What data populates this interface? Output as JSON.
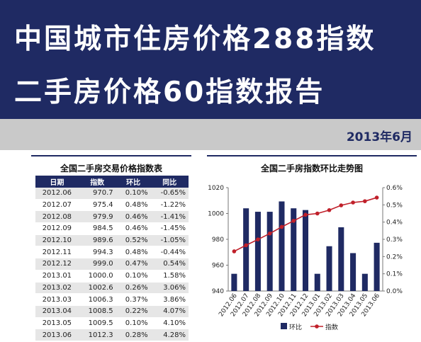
{
  "header": {
    "line1": "中国城市住房价格288指数",
    "line2": "二手房价格60指数报告",
    "date": "2013年6月"
  },
  "table": {
    "title": "全国二手房交易价格指数表",
    "columns": [
      "日期",
      "指数",
      "环比",
      "同比"
    ],
    "rows": [
      [
        "2012.06",
        "970.7",
        "0.10%",
        "-0.65%"
      ],
      [
        "2012.07",
        "975.4",
        "0.48%",
        "-1.22%"
      ],
      [
        "2012.08",
        "979.9",
        "0.46%",
        "-1.41%"
      ],
      [
        "2012.09",
        "984.5",
        "0.46%",
        "-1.45%"
      ],
      [
        "2012.10",
        "989.6",
        "0.52%",
        "-1.05%"
      ],
      [
        "2012.11",
        "994.3",
        "0.48%",
        "-0.44%"
      ],
      [
        "2012.12",
        "999.0",
        "0.47%",
        "0.54%"
      ],
      [
        "2013.01",
        "1000.0",
        "0.10%",
        "1.58%"
      ],
      [
        "2013.02",
        "1002.6",
        "0.26%",
        "3.06%"
      ],
      [
        "2013.03",
        "1006.3",
        "0.37%",
        "3.86%"
      ],
      [
        "2013.04",
        "1008.5",
        "0.22%",
        "4.07%"
      ],
      [
        "2013.05",
        "1009.5",
        "0.10%",
        "4.10%"
      ],
      [
        "2013.06",
        "1012.3",
        "0.28%",
        "4.28%"
      ]
    ]
  },
  "chart_data": {
    "type": "bar",
    "title": "全国二手房指数环比走势图",
    "categories": [
      "2012.06",
      "2012.07",
      "2012.08",
      "2012.09",
      "2012.10",
      "2012.11",
      "2012.12",
      "2013.01",
      "2013.02",
      "2013.03",
      "2013.04",
      "2013.05",
      "2013.06"
    ],
    "series": [
      {
        "name": "环比",
        "type": "bar",
        "axis": "right",
        "color": "#1f2a63",
        "values": [
          0.1,
          0.48,
          0.46,
          0.46,
          0.52,
          0.48,
          0.47,
          0.1,
          0.26,
          0.37,
          0.22,
          0.1,
          0.28
        ]
      },
      {
        "name": "指数",
        "type": "line",
        "axis": "left",
        "color": "#c0202a",
        "values": [
          970.7,
          975.4,
          979.9,
          984.5,
          989.6,
          994.3,
          999.0,
          1000.0,
          1002.6,
          1006.3,
          1008.5,
          1009.5,
          1012.3
        ]
      }
    ],
    "y_left": {
      "lim": [
        940,
        1020
      ],
      "ticks": [
        940,
        960,
        980,
        1000,
        1020
      ]
    },
    "y_right": {
      "lim": [
        0,
        0.6
      ],
      "ticks": [
        "0.0%",
        "0.1%",
        "0.2%",
        "0.3%",
        "0.4%",
        "0.5%",
        "0.6%"
      ]
    },
    "legend": "bottom",
    "grid": false
  }
}
